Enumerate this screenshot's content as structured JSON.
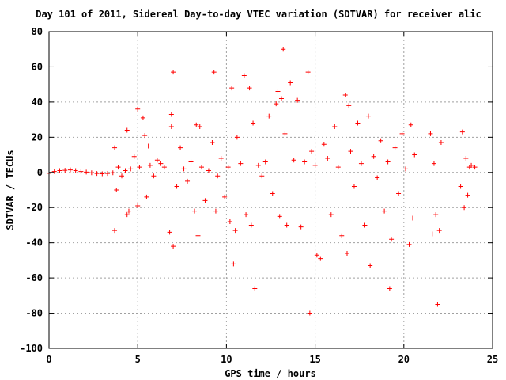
{
  "chart_data": {
    "type": "scatter",
    "title": "Day 101 of 2011, Sidereal Day-to-day VTEC variation (SDTVAR) for receiver alic",
    "xlabel": "GPS time / hours",
    "ylabel": "SDTVAR / TECUs",
    "xlim": [
      0,
      25
    ],
    "ylim": [
      -100,
      80
    ],
    "x_ticks": [
      0,
      5,
      10,
      15,
      20,
      25
    ],
    "y_ticks": [
      -100,
      -80,
      -60,
      -40,
      -20,
      0,
      20,
      40,
      60,
      80
    ],
    "x_tick_labels": [
      "0",
      "5",
      "10",
      "15",
      "20",
      "25"
    ],
    "y_tick_labels": [
      "-100",
      "-80",
      "-60",
      "-40",
      "-20",
      "0",
      "20",
      "40",
      "60",
      "80"
    ],
    "grid": true,
    "marker": "plus",
    "color": "#ff0000",
    "series": [
      {
        "points": [
          [
            0.0,
            -0.5
          ],
          [
            0.3,
            0.5
          ],
          [
            0.6,
            1.0
          ],
          [
            0.9,
            1.2
          ],
          [
            1.2,
            1.4
          ],
          [
            1.5,
            1.0
          ],
          [
            1.8,
            0.5
          ],
          [
            2.1,
            0.2
          ],
          [
            2.4,
            -0.2
          ],
          [
            2.7,
            -0.6
          ],
          [
            3.0,
            -0.8
          ],
          [
            3.3,
            -0.6
          ],
          [
            3.6,
            -0.2
          ],
          [
            3.7,
            -33.0
          ],
          [
            3.7,
            14.0
          ],
          [
            3.8,
            -10.0
          ],
          [
            3.9,
            3.0
          ],
          [
            4.1,
            -2.0
          ],
          [
            4.3,
            1.0
          ],
          [
            4.4,
            24.0
          ],
          [
            4.4,
            -24.0
          ],
          [
            4.5,
            -22.0
          ],
          [
            4.6,
            2.0
          ],
          [
            4.8,
            9.0
          ],
          [
            5.0,
            36.0
          ],
          [
            5.0,
            -19.0
          ],
          [
            5.1,
            3.0
          ],
          [
            5.3,
            31.0
          ],
          [
            5.4,
            21.0
          ],
          [
            5.5,
            -14.0
          ],
          [
            5.6,
            15.0
          ],
          [
            5.7,
            4.0
          ],
          [
            5.9,
            -2.0
          ],
          [
            6.1,
            7.0
          ],
          [
            6.3,
            5.0
          ],
          [
            6.5,
            3.0
          ],
          [
            6.8,
            -34.0
          ],
          [
            6.9,
            33.0
          ],
          [
            6.9,
            26.0
          ],
          [
            7.0,
            -42.0
          ],
          [
            7.0,
            57.0
          ],
          [
            7.2,
            -8.0
          ],
          [
            7.4,
            14.0
          ],
          [
            7.6,
            2.0
          ],
          [
            7.8,
            -5.0
          ],
          [
            8.0,
            6.0
          ],
          [
            8.2,
            -22.0
          ],
          [
            8.3,
            27.0
          ],
          [
            8.4,
            -36.0
          ],
          [
            8.5,
            26.0
          ],
          [
            8.6,
            3.0
          ],
          [
            8.8,
            -16.0
          ],
          [
            9.0,
            1.0
          ],
          [
            9.2,
            17.0
          ],
          [
            9.3,
            57.0
          ],
          [
            9.4,
            -22.0
          ],
          [
            9.5,
            -2.0
          ],
          [
            9.7,
            8.0
          ],
          [
            9.9,
            -14.0
          ],
          [
            10.1,
            3.0
          ],
          [
            10.2,
            -28.0
          ],
          [
            10.3,
            48.0
          ],
          [
            10.4,
            -52.0
          ],
          [
            10.5,
            -33.0
          ],
          [
            10.6,
            20.0
          ],
          [
            10.8,
            5.0
          ],
          [
            11.0,
            55.0
          ],
          [
            11.1,
            -24.0
          ],
          [
            11.3,
            48.0
          ],
          [
            11.4,
            -30.0
          ],
          [
            11.5,
            28.0
          ],
          [
            11.6,
            -66.0
          ],
          [
            11.8,
            4.0
          ],
          [
            12.0,
            -2.0
          ],
          [
            12.2,
            6.0
          ],
          [
            12.4,
            32.0
          ],
          [
            12.6,
            -12.0
          ],
          [
            12.8,
            39.0
          ],
          [
            12.9,
            46.0
          ],
          [
            13.0,
            -25.0
          ],
          [
            13.1,
            42.0
          ],
          [
            13.2,
            70.0
          ],
          [
            13.3,
            22.0
          ],
          [
            13.4,
            -30.0
          ],
          [
            13.6,
            51.0
          ],
          [
            13.8,
            7.0
          ],
          [
            14.0,
            41.0
          ],
          [
            14.2,
            -31.0
          ],
          [
            14.4,
            6.0
          ],
          [
            14.6,
            57.0
          ],
          [
            14.7,
            -80.0
          ],
          [
            14.8,
            12.0
          ],
          [
            15.0,
            4.0
          ],
          [
            15.1,
            -47.0
          ],
          [
            15.3,
            -49.0
          ],
          [
            15.5,
            16.0
          ],
          [
            15.7,
            8.0
          ],
          [
            15.9,
            -24.0
          ],
          [
            16.1,
            26.0
          ],
          [
            16.3,
            3.0
          ],
          [
            16.5,
            -36.0
          ],
          [
            16.7,
            44.0
          ],
          [
            16.8,
            -46.0
          ],
          [
            16.9,
            38.0
          ],
          [
            17.0,
            12.0
          ],
          [
            17.2,
            -8.0
          ],
          [
            17.4,
            28.0
          ],
          [
            17.6,
            5.0
          ],
          [
            17.8,
            -30.0
          ],
          [
            18.0,
            32.0
          ],
          [
            18.1,
            -53.0
          ],
          [
            18.3,
            9.0
          ],
          [
            18.5,
            -3.0
          ],
          [
            18.7,
            18.0
          ],
          [
            18.9,
            -22.0
          ],
          [
            19.1,
            6.0
          ],
          [
            19.2,
            -66.0
          ],
          [
            19.3,
            -38.0
          ],
          [
            19.5,
            14.0
          ],
          [
            19.7,
            -12.0
          ],
          [
            19.9,
            22.0
          ],
          [
            20.1,
            2.0
          ],
          [
            20.3,
            -41.0
          ],
          [
            20.4,
            27.0
          ],
          [
            20.5,
            -26.0
          ],
          [
            20.6,
            10.0
          ],
          [
            21.5,
            22.0
          ],
          [
            21.6,
            -35.0
          ],
          [
            21.7,
            5.0
          ],
          [
            21.8,
            -24.0
          ],
          [
            21.9,
            -75.0
          ],
          [
            22.0,
            -33.0
          ],
          [
            22.1,
            17.0
          ],
          [
            23.2,
            -8.0
          ],
          [
            23.3,
            23.0
          ],
          [
            23.4,
            -20.0
          ],
          [
            23.5,
            8.0
          ],
          [
            23.6,
            -13.0
          ],
          [
            23.7,
            3.0
          ],
          [
            23.8,
            4.0
          ],
          [
            24.0,
            3.0
          ]
        ]
      }
    ]
  }
}
